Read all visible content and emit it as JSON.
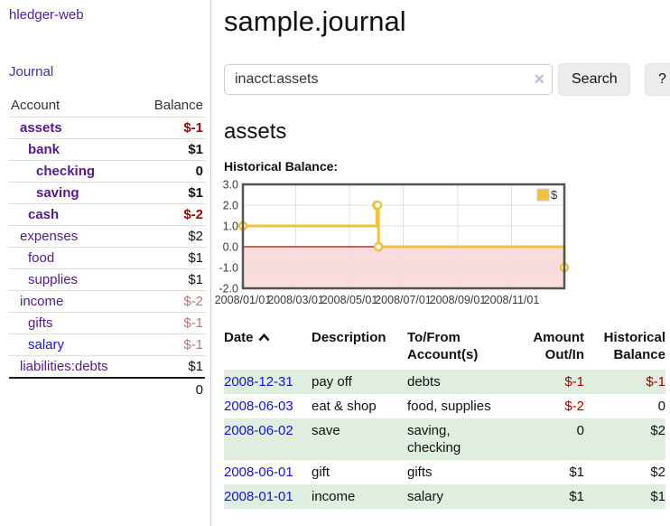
{
  "colors": {
    "accent_purple": "#551a8b",
    "link_blue": "#1414cc",
    "negative_red": "#a40000",
    "dim_negative": "#c17575",
    "row_stripe_green": "#dfeede",
    "chart_line_gold": "#edc240",
    "chart_negative_fill": "#fadcdc",
    "chart_zero_line": "#991111"
  },
  "sidebar": {
    "app_title": "hledger-web",
    "journal_link": "Journal",
    "accounts_table": {
      "account_header": "Account",
      "balance_header": "Balance",
      "rows": [
        {
          "name": "assets",
          "balance": "$-1",
          "level": 1,
          "current": true,
          "balance_style": "neg"
        },
        {
          "name": "bank",
          "balance": "$1",
          "level": 2,
          "current": true,
          "balance_style": ""
        },
        {
          "name": "checking",
          "balance": "0",
          "level": 3,
          "current": true,
          "balance_style": ""
        },
        {
          "name": "saving",
          "balance": "$1",
          "level": 3,
          "current": true,
          "balance_style": ""
        },
        {
          "name": "cash",
          "balance": "$-2",
          "level": 2,
          "current": true,
          "balance_style": "neg"
        },
        {
          "name": "expenses",
          "balance": "$2",
          "level": 1,
          "current": false,
          "balance_style": ""
        },
        {
          "name": "food",
          "balance": "$1",
          "level": 2,
          "current": false,
          "balance_style": ""
        },
        {
          "name": "supplies",
          "balance": "$1",
          "level": 2,
          "current": false,
          "balance_style": ""
        },
        {
          "name": "income",
          "balance": "$-2",
          "level": 1,
          "current": false,
          "balance_style": "dimneg"
        },
        {
          "name": "gifts",
          "balance": "$-1",
          "level": 2,
          "current": false,
          "balance_style": "dimneg"
        },
        {
          "name": "salary",
          "balance": "$-1",
          "level": 2,
          "current": false,
          "balance_style": "dimneg",
          "unvisited": true
        },
        {
          "name": "liabilities:debts",
          "balance": "$1",
          "level": 1,
          "current": false,
          "balance_style": ""
        }
      ],
      "total": "0"
    }
  },
  "main": {
    "title": "sample.journal",
    "search": {
      "value": "inacct:assets",
      "clear_icon": "×",
      "search_button": "Search",
      "help_button": "?"
    },
    "account_heading": "assets",
    "chart_label": "Historical Balance:"
  },
  "chart_data": {
    "type": "line",
    "title": "Historical Balance:",
    "step": true,
    "legend": "$",
    "legend_position": "top-right",
    "grid": true,
    "xrange": [
      "2008-01-01",
      "2008-12-31"
    ],
    "ylim": [
      -2,
      3
    ],
    "yticks": [
      {
        "v": 3,
        "label": "3.0"
      },
      {
        "v": 2,
        "label": "2.0"
      },
      {
        "v": 1,
        "label": "1.0"
      },
      {
        "v": 0,
        "label": "0.0"
      },
      {
        "v": -1,
        "label": "-1.0"
      },
      {
        "v": -2,
        "label": "-2.0"
      }
    ],
    "xticks": [
      {
        "d": "2008-01-01",
        "label": "2008/01/01"
      },
      {
        "d": "2008-03-01",
        "label": "2008/03/01"
      },
      {
        "d": "2008-05-01",
        "label": "2008/05/01"
      },
      {
        "d": "2008-07-01",
        "label": "2008/07/01"
      },
      {
        "d": "2008-09-01",
        "label": "2008/09/01"
      },
      {
        "d": "2008-11-01",
        "label": "2008/11/01"
      }
    ],
    "series": [
      {
        "name": "$",
        "color": "#edc240",
        "points": [
          {
            "d": "2008-01-01",
            "v": 1
          },
          {
            "d": "2008-06-01",
            "v": 2
          },
          {
            "d": "2008-06-02",
            "v": 2
          },
          {
            "d": "2008-06-03",
            "v": 0
          },
          {
            "d": "2008-12-31",
            "v": -1
          }
        ]
      }
    ],
    "negative_region_color": "#fadcdc",
    "zero_line_color": "#991111"
  },
  "register_table": {
    "headers": {
      "date": "Date",
      "description": "Description",
      "accounts": "To/From Account(s)",
      "amount": "Amount Out/In",
      "balance": "Historical Balance"
    },
    "sort_icon": "chevron-up",
    "rows": [
      {
        "date": "2008-12-31",
        "description": "pay off",
        "accounts": "debts",
        "amount": "$-1",
        "balance": "$-1",
        "amount_neg": true,
        "balance_neg": true,
        "shade": true
      },
      {
        "date": "2008-06-03",
        "description": "eat & shop",
        "accounts": "food, supplies",
        "amount": "$-2",
        "balance": "0",
        "amount_neg": true,
        "balance_neg": false,
        "shade": false
      },
      {
        "date": "2008-06-02",
        "description": "save",
        "accounts": "saving, checking",
        "amount": "0",
        "balance": "$2",
        "amount_neg": false,
        "balance_neg": false,
        "shade": true
      },
      {
        "date": "2008-06-01",
        "description": "gift",
        "accounts": "gifts",
        "amount": "$1",
        "balance": "$2",
        "amount_neg": false,
        "balance_neg": false,
        "shade": false
      },
      {
        "date": "2008-01-01",
        "description": "income",
        "accounts": "salary",
        "amount": "$1",
        "balance": "$1",
        "amount_neg": false,
        "balance_neg": false,
        "shade": true
      }
    ]
  }
}
